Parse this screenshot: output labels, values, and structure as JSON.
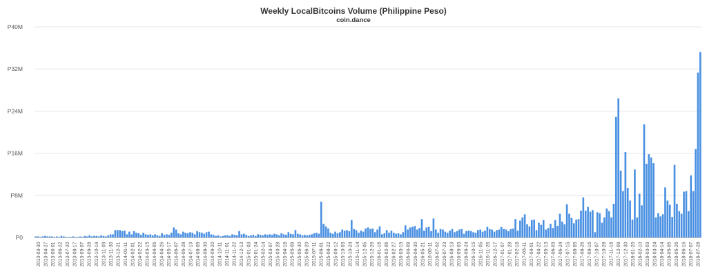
{
  "chart_data": {
    "type": "bar",
    "title": "Weekly LocalBitcoins Volume (Philippine Peso)",
    "subtitle": "coin.dance",
    "xlabel": "",
    "ylabel": "",
    "ylim": [
      0,
      40000000
    ],
    "y_ticks": [
      {
        "value": 0,
        "label": "P0"
      },
      {
        "value": 8000000,
        "label": "P8M"
      },
      {
        "value": 16000000,
        "label": "P16M"
      },
      {
        "value": 24000000,
        "label": "P24M"
      },
      {
        "value": 32000000,
        "label": "P32M"
      },
      {
        "value": 40000000,
        "label": "P40M"
      }
    ],
    "grid": true,
    "bar_color": "#4a90e2",
    "x_tick_labels": [
      "2013-03-30",
      "2013-04-27",
      "2013-06-01",
      "2013-06-22",
      "2013-07-20",
      "2013-08-17",
      "2013-09-07",
      "2013-09-28",
      "2013-10-19",
      "2013-11-09",
      "2013-11-30",
      "2013-12-21",
      "2014-01-11",
      "2014-02-01",
      "2014-02-22",
      "2014-03-15",
      "2014-04-05",
      "2014-04-26",
      "2014-05-17",
      "2014-06-07",
      "2014-06-28",
      "2014-07-19",
      "2014-08-09",
      "2014-08-30",
      "2014-09-20",
      "2014-10-11",
      "2014-11-01",
      "2014-11-22",
      "2014-12-13",
      "2015-01-03",
      "2015-01-24",
      "2015-02-14",
      "2015-03-07",
      "2015-03-28",
      "2015-04-18",
      "2015-05-09",
      "2015-05-30",
      "2015-06-20",
      "2015-07-11",
      "2015-08-01",
      "2015-08-22",
      "2015-09-12",
      "2015-10-03",
      "2015-10-24",
      "2015-11-14",
      "2015-12-05",
      "2015-12-26",
      "2016-01-16",
      "2016-02-06",
      "2016-02-27",
      "2016-03-19",
      "2016-04-09",
      "2016-04-30",
      "2016-05-21",
      "2016-06-11",
      "2016-07-02",
      "2016-07-23",
      "2016-08-13",
      "2016-09-03",
      "2016-09-24",
      "2016-10-15",
      "2016-11-05",
      "2016-11-26",
      "2016-12-17",
      "2017-01-07",
      "2017-01-28",
      "2017-02-18",
      "2017-03-11",
      "2017-04-01",
      "2017-04-22",
      "2017-05-13",
      "2017-06-03",
      "2017-06-24",
      "2017-07-15",
      "2017-08-05",
      "2017-08-26",
      "2017-09-16",
      "2017-10-07",
      "2017-10-28",
      "2017-11-18",
      "2017-12-09",
      "2017-12-30",
      "2018-01-20",
      "2018-02-10",
      "2018-03-03",
      "2018-03-24",
      "2018-04-14",
      "2018-05-05",
      "2018-05-26",
      "2018-06-16",
      "2018-07-07",
      "2018-07-28"
    ],
    "values": [
      0.2,
      0.2,
      0.1,
      0.2,
      0.3,
      0.2,
      0.2,
      0.2,
      0.1,
      0.2,
      0.1,
      0.3,
      0.2,
      0.1,
      0.1,
      0.1,
      0.2,
      0.1,
      0.1,
      0.2,
      0.1,
      0.3,
      0.2,
      0.4,
      0.2,
      0.3,
      0.3,
      0.2,
      0.4,
      0.3,
      0.2,
      0.4,
      0.6,
      0.6,
      1.4,
      1.4,
      1.4,
      1.2,
      1.3,
      0.6,
      1.1,
      0.6,
      1.2,
      0.9,
      0.8,
      0.5,
      0.9,
      0.6,
      0.5,
      0.6,
      0.4,
      0.6,
      0.4,
      0.3,
      0.8,
      0.5,
      0.6,
      0.5,
      0.9,
      1.9,
      1.5,
      0.8,
      0.6,
      1.1,
      0.9,
      0.8,
      1.0,
      0.9,
      0.6,
      1.2,
      1.0,
      0.9,
      0.7,
      1.0,
      1.1,
      0.6,
      0.5,
      0.3,
      0.4,
      0.2,
      0.3,
      0.4,
      0.4,
      0.3,
      0.6,
      0.5,
      0.4,
      1.2,
      0.6,
      0.7,
      0.5,
      0.3,
      0.4,
      0.5,
      0.3,
      0.6,
      0.5,
      0.4,
      0.6,
      0.5,
      0.6,
      0.5,
      0.7,
      0.6,
      0.4,
      0.8,
      0.6,
      0.5,
      1.0,
      0.7,
      0.6,
      1.4,
      0.7,
      0.6,
      0.4,
      0.5,
      0.4,
      0.5,
      0.6,
      0.8,
      0.9,
      0.7,
      6.8,
      2.6,
      2.1,
      1.7,
      0.9,
      0.7,
      1.1,
      0.8,
      1.0,
      1.5,
      1.3,
      1.4,
      1.2,
      3.3,
      1.6,
      1.4,
      0.9,
      1.3,
      1.1,
      1.7,
      1.9,
      1.6,
      1.7,
      1.0,
      1.5,
      2.1,
      0.6,
      0.8,
      1.4,
      0.9,
      1.3,
      0.9,
      0.7,
      0.8,
      0.6,
      1.0,
      2.3,
      1.5,
      1.9,
      2.0,
      2.2,
      1.5,
      1.8,
      3.5,
      1.3,
      1.9,
      2.0,
      1.2,
      3.6,
      1.5,
      0.9,
      1.6,
      1.5,
      1.1,
      0.9,
      1.3,
      1.6,
      1.0,
      1.2,
      1.5,
      1.6,
      0.7,
      1.2,
      1.3,
      1.2,
      1.0,
      0.9,
      1.4,
      1.5,
      1.1,
      1.3,
      2.0,
      1.6,
      1.5,
      1.1,
      1.4,
      1.5,
      2.0,
      1.6,
      1.5,
      1.2,
      1.6,
      1.7,
      3.5,
      1.3,
      3.2,
      3.8,
      4.4,
      2.5,
      2.1,
      3.3,
      3.4,
      1.4,
      2.8,
      2.4,
      3.3,
      1.5,
      1.8,
      2.6,
      1.8,
      3.3,
      2.2,
      4.5,
      3.0,
      2.5,
      6.3,
      4.5,
      3.7,
      2.7,
      3.4,
      3.5,
      5.1,
      7.6,
      5.1,
      5.8,
      4.9,
      5.2,
      1.0,
      4.8,
      4.6,
      2.8,
      3.8,
      5.5,
      5.0,
      3.8,
      6.4,
      22.9,
      26.4,
      12.7,
      8.8,
      16.2,
      9.4,
      7.0,
      3.4,
      12.9,
      3.8,
      8.3,
      6.1,
      21.5,
      14.0,
      15.8,
      15.2,
      14.1,
      3.8,
      4.6,
      4.0,
      4.4,
      9.5,
      7.0,
      6.2,
      3.9,
      13.8,
      6.4,
      5.0,
      4.5,
      8.7,
      8.8,
      5.0,
      11.8,
      8.8,
      16.8,
      31.3,
      35.2
    ]
  }
}
